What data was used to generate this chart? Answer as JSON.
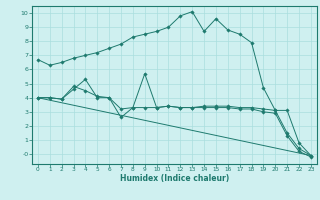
{
  "xlabel": "Humidex (Indice chaleur)",
  "background_color": "#cff0f0",
  "line_color": "#1e7a6e",
  "grid_color": "#aadede",
  "xlim": [
    -0.5,
    23.5
  ],
  "ylim": [
    -0.7,
    10.5
  ],
  "xticks": [
    0,
    1,
    2,
    3,
    4,
    5,
    6,
    7,
    8,
    9,
    10,
    11,
    12,
    13,
    14,
    15,
    16,
    17,
    18,
    19,
    20,
    21,
    22,
    23
  ],
  "yticks": [
    0,
    1,
    2,
    3,
    4,
    5,
    6,
    7,
    8,
    9,
    10
  ],
  "ytick_labels": [
    "-0",
    "1",
    "2",
    "3",
    "4",
    "5",
    "6",
    "7",
    "8",
    "9",
    "10"
  ],
  "series": [
    {
      "x": [
        0,
        1,
        2,
        3,
        4,
        5,
        6,
        7,
        8,
        9,
        10,
        11,
        12,
        13,
        14,
        15,
        16,
        17,
        18,
        19,
        20,
        21,
        22,
        23
      ],
      "y": [
        6.7,
        6.3,
        6.5,
        6.8,
        7.0,
        7.2,
        7.5,
        7.8,
        8.3,
        8.5,
        8.7,
        9.0,
        9.8,
        10.1,
        8.7,
        9.6,
        8.8,
        8.5,
        7.9,
        4.7,
        3.1,
        3.1,
        0.8,
        -0.1
      ],
      "marker": true
    },
    {
      "x": [
        0,
        1,
        2,
        3,
        4,
        5,
        6,
        7,
        8,
        9,
        10,
        11,
        12,
        13,
        14,
        15,
        16,
        17,
        18,
        19,
        20,
        21,
        22,
        23
      ],
      "y": [
        4.0,
        4.0,
        3.9,
        4.8,
        4.5,
        4.1,
        4.0,
        3.2,
        3.3,
        5.7,
        3.3,
        3.4,
        3.3,
        3.3,
        3.4,
        3.4,
        3.4,
        3.3,
        3.3,
        3.2,
        3.1,
        1.5,
        0.4,
        -0.1
      ],
      "marker": true
    },
    {
      "x": [
        0,
        1,
        2,
        3,
        4,
        5,
        6,
        7,
        8,
        9,
        10,
        11,
        12,
        13,
        14,
        15,
        16,
        17,
        18,
        19,
        20,
        21,
        22,
        23
      ],
      "y": [
        4.0,
        4.0,
        3.9,
        4.6,
        5.3,
        4.0,
        4.0,
        2.6,
        3.3,
        3.3,
        3.3,
        3.4,
        3.3,
        3.3,
        3.3,
        3.3,
        3.3,
        3.2,
        3.2,
        3.0,
        2.9,
        1.3,
        0.2,
        -0.2
      ],
      "marker": true
    },
    {
      "x": [
        0,
        23
      ],
      "y": [
        4.0,
        -0.1
      ],
      "marker": false
    }
  ]
}
